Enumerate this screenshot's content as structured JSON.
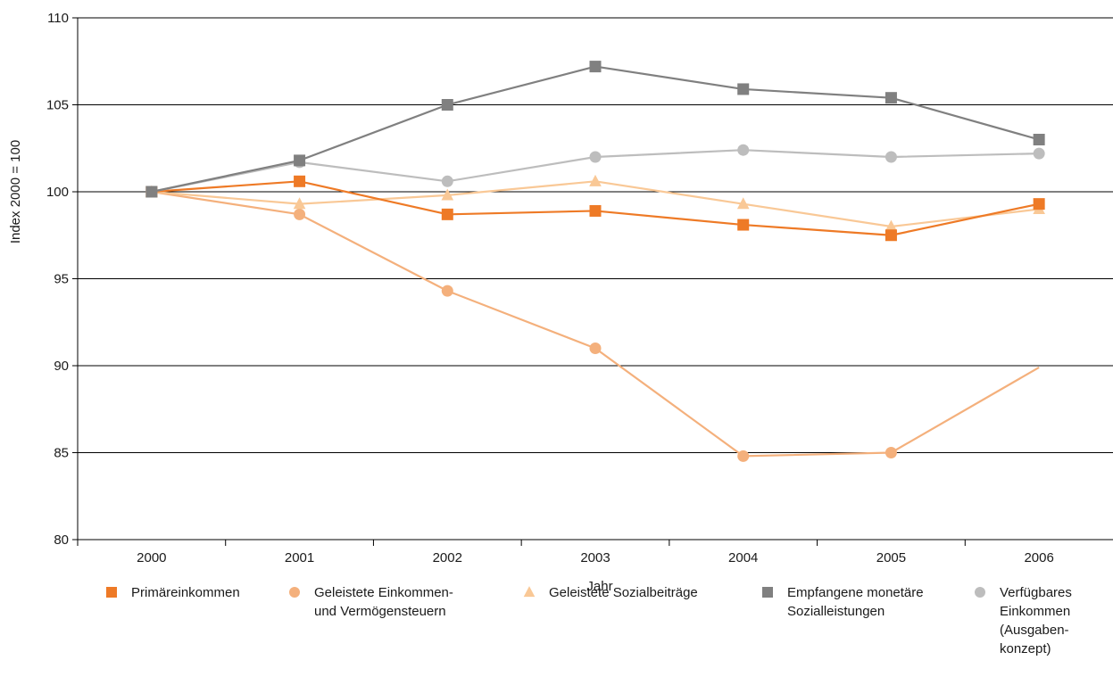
{
  "chart_data": {
    "type": "line",
    "title": "",
    "xlabel": "Jahr",
    "ylabel": "Index 2000 = 100",
    "ylim": [
      80,
      110
    ],
    "yticks": [
      80,
      85,
      90,
      95,
      100,
      105,
      110
    ],
    "grid": true,
    "legend_position": "bottom",
    "categories": [
      "2000",
      "2001",
      "2002",
      "2003",
      "2004",
      "2005",
      "2006"
    ],
    "series": [
      {
        "name": "Primäreinkommen",
        "legend_lines": [
          "Primäreinkommen"
        ],
        "marker": "square",
        "color": "#ee7a26",
        "values": [
          100.0,
          100.6,
          98.7,
          98.9,
          98.1,
          97.5,
          99.3
        ]
      },
      {
        "name": "Geleistete Einkommen- und Vermögensteuern",
        "legend_lines": [
          "Geleistete Einkommen-",
          "und Vermögensteuern"
        ],
        "marker": "circle",
        "color": "#f4b07c",
        "values": [
          100.0,
          98.7,
          94.3,
          91.0,
          84.8,
          85.0,
          89.9
        ]
      },
      {
        "name": "Geleistete Sozialbeiträge",
        "legend_lines": [
          "Geleistete Sozialbeiträge"
        ],
        "marker": "triangle",
        "color": "#f9c896",
        "values": [
          100.0,
          99.3,
          99.8,
          100.6,
          99.3,
          98.0,
          99.0
        ]
      },
      {
        "name": "Empfangene monetäre Sozialleistungen",
        "legend_lines": [
          "Empfangene monetäre",
          "Sozialleistungen"
        ],
        "marker": "square",
        "color": "#808080",
        "values": [
          100.0,
          101.8,
          105.0,
          107.2,
          105.9,
          105.4,
          103.0
        ]
      },
      {
        "name": "Verfügbares Einkommen (Ausgabenkonzept)",
        "legend_lines": [
          "Verfügbares",
          "Einkommen",
          "(Ausgaben-",
          "konzept)"
        ],
        "marker": "circle",
        "color": "#bdbdbd",
        "values": [
          100.0,
          101.7,
          100.6,
          102.0,
          102.4,
          102.0,
          102.2
        ]
      }
    ]
  }
}
